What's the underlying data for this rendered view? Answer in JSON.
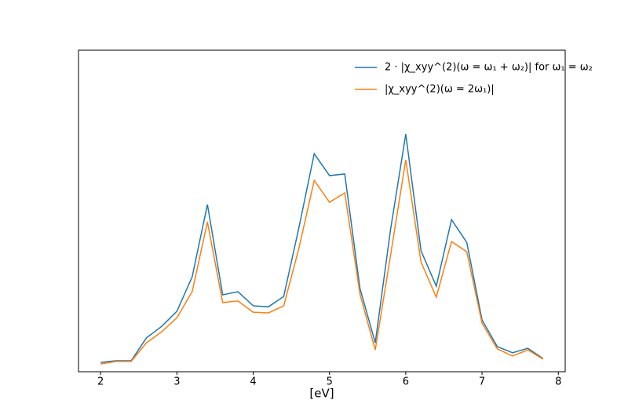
{
  "chart_data": {
    "type": "line",
    "xlabel": "[eV]",
    "x": [
      2.0,
      2.2,
      2.4,
      2.6,
      2.8,
      3.0,
      3.2,
      3.4,
      3.6,
      3.8,
      4.0,
      4.2,
      4.4,
      4.6,
      4.8,
      5.0,
      5.2,
      5.4,
      5.6,
      5.8,
      6.0,
      6.2,
      6.4,
      6.6,
      6.8,
      7.0,
      7.2,
      7.4,
      7.6,
      7.8
    ],
    "series": [
      {
        "name": "2 · |χ_xyy^(2)(ω = ω₁ + ω₂)| for ω₁ = ω₂",
        "color": "#1f77b4",
        "values": [
          2.9,
          3.4,
          3.4,
          10.5,
          14.1,
          18.8,
          29.5,
          52.0,
          23.9,
          24.9,
          20.5,
          20.2,
          23.4,
          44.9,
          67.8,
          61.0,
          61.5,
          25.9,
          9.0,
          44.1,
          73.9,
          37.6,
          26.6,
          47.3,
          40.2,
          16.1,
          7.8,
          5.9,
          7.3,
          4.1
        ]
      },
      {
        "name": "|χ_xyy^(2)(ω = 2ω₁)|",
        "color": "#ff7f0e",
        "values": [
          2.4,
          3.2,
          3.2,
          9.0,
          12.4,
          16.8,
          24.9,
          46.6,
          21.5,
          22.0,
          18.5,
          18.3,
          20.5,
          38.5,
          59.5,
          52.7,
          55.6,
          24.1,
          6.8,
          36.1,
          65.9,
          34.1,
          23.2,
          40.5,
          37.3,
          15.1,
          7.1,
          4.9,
          6.8,
          3.9
        ]
      }
    ],
    "xlim": [
      1.71,
      8.09
    ],
    "ylim": [
      0,
      100
    ],
    "xticks": [
      2,
      3,
      4,
      5,
      6,
      7,
      8
    ],
    "legend": "upper right"
  }
}
